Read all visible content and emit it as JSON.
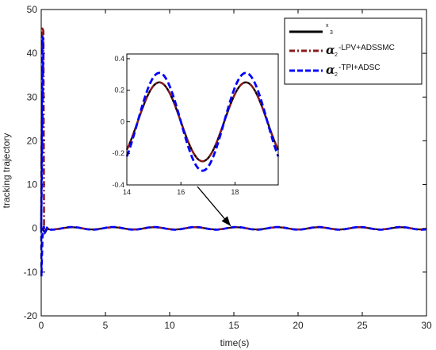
{
  "chart_data": {
    "type": "line",
    "xlabel": "time(s)",
    "ylabel": "tracking trajectory",
    "xlim": [
      0,
      30
    ],
    "ylim": [
      -20,
      50
    ],
    "xticks": [
      "0",
      "5",
      "10",
      "15",
      "20",
      "25",
      "30"
    ],
    "yticks": [
      "-20",
      "-10",
      "0",
      "10",
      "20",
      "30",
      "40",
      "50"
    ],
    "grid": false,
    "legend_position": "top-right",
    "legend": [
      {
        "symbol": "x",
        "sub": "3",
        "suffix": "",
        "color": "#000000",
        "style": "solid"
      },
      {
        "symbol": "α",
        "sub": "2",
        "suffix": "-LPV+ADSSMC",
        "color": "#8b1a1a",
        "style": "dashdot"
      },
      {
        "symbol": "α",
        "sub": "2",
        "suffix": "-TPI+ADSC",
        "color": "#0000ff",
        "style": "dashed"
      }
    ],
    "series": [
      {
        "key": "x3",
        "amplitude": 0.25,
        "period": 3.2,
        "peak_time": 15.2
      },
      {
        "key": "lpv",
        "amplitude": 0.25,
        "period": 3.2,
        "peak_time": 15.2,
        "initial_peak": 46
      },
      {
        "key": "tpi",
        "amplitude": 0.31,
        "period": 3.2,
        "peak_time": 15.2,
        "initial_peak": 44,
        "initial_min": -11
      }
    ],
    "inset": {
      "xlim": [
        14,
        19.6
      ],
      "ylim": [
        -0.4,
        0.43
      ],
      "xticks": [
        "14",
        "16",
        "18"
      ],
      "yticks": [
        "-0.4",
        "-0.2",
        "0",
        "0.2",
        "0.4"
      ]
    },
    "annotation_arrow": {
      "points_to": [
        15,
        0
      ]
    }
  }
}
